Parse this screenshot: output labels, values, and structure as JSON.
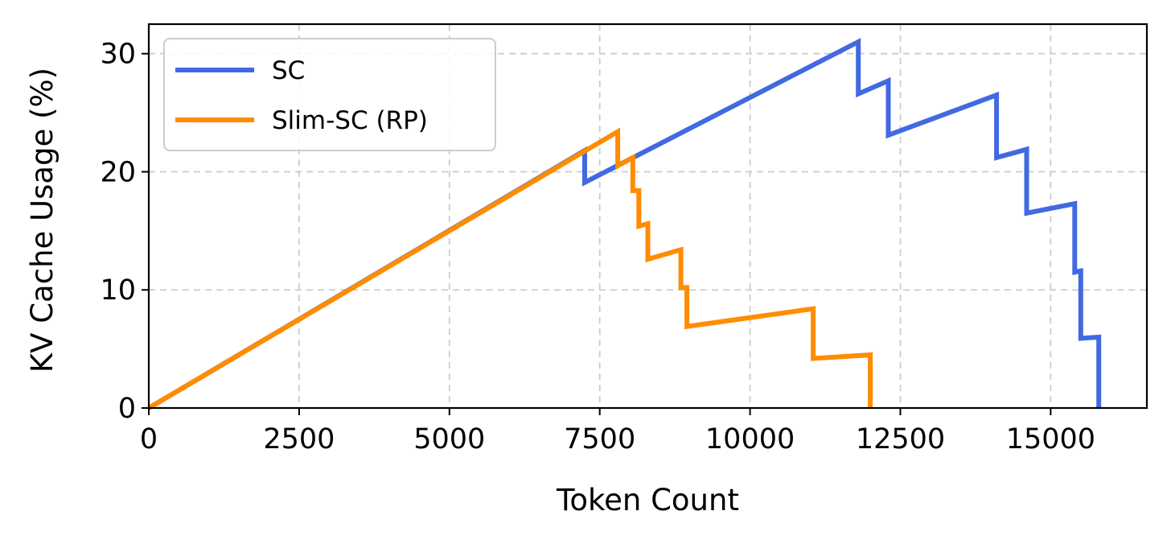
{
  "chart_data": {
    "type": "line",
    "xlabel": "Token Count",
    "ylabel": "KV Cache Usage (%)",
    "xlim": [
      0,
      16600
    ],
    "ylim": [
      0,
      32.5
    ],
    "xticks": [
      0,
      2500,
      5000,
      7500,
      10000,
      12500,
      15000
    ],
    "yticks": [
      0,
      10,
      20,
      30
    ],
    "grid": true,
    "legend_position": "upper-left",
    "series": [
      {
        "name": "SC",
        "color": "#4169e1",
        "x": [
          0,
          7250,
          7250,
          11800,
          11800,
          12300,
          12300,
          14100,
          14100,
          14600,
          14600,
          15400,
          15400,
          15500,
          15500,
          15800,
          15800
        ],
        "y": [
          0,
          21.8,
          19.1,
          31.0,
          26.6,
          27.7,
          23.1,
          26.5,
          21.2,
          21.9,
          16.5,
          17.3,
          11.5,
          11.6,
          5.9,
          6.0,
          0
        ]
      },
      {
        "name": "Slim-SC (RP)",
        "color": "#ff8c00",
        "x": [
          0,
          7800,
          7800,
          8050,
          8050,
          8150,
          8150,
          8300,
          8300,
          8850,
          8850,
          8950,
          8950,
          11050,
          11050,
          12000,
          12000
        ],
        "y": [
          0,
          23.4,
          20.5,
          21.2,
          18.4,
          18.4,
          15.4,
          15.6,
          12.6,
          13.4,
          10.2,
          10.2,
          6.9,
          8.4,
          4.2,
          4.5,
          0
        ]
      }
    ]
  }
}
